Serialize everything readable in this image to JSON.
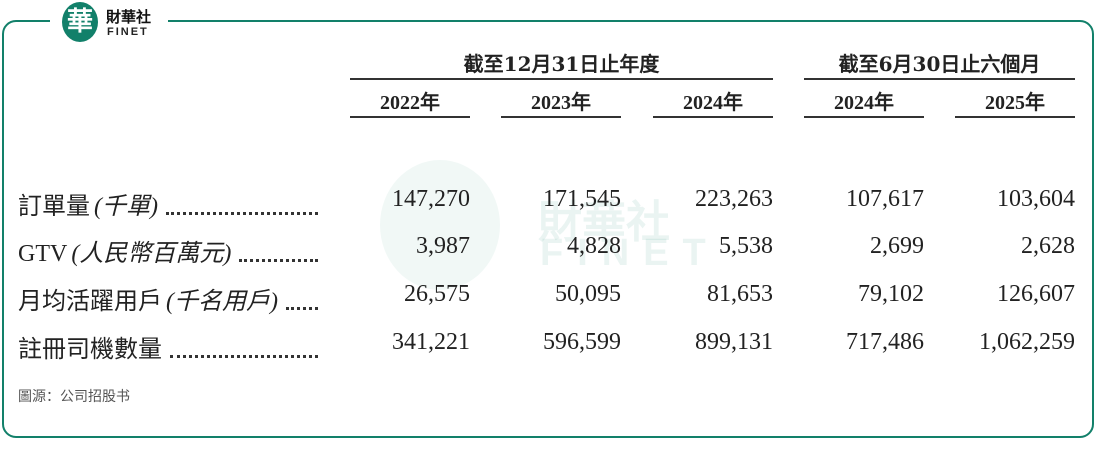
{
  "logo": {
    "mark": "華",
    "name": "財華社",
    "latin": "FINET"
  },
  "table": {
    "groups": [
      {
        "label": "截至12月31日止年度",
        "span": 3
      },
      {
        "label": "截至6月30日止六個月",
        "span": 2
      }
    ],
    "years": [
      "2022年",
      "2023年",
      "2024年",
      "2024年",
      "2025年"
    ],
    "rows": [
      {
        "label": "訂單量",
        "unit": "(千單)",
        "values": [
          "147,270",
          "171,545",
          "223,263",
          "107,617",
          "103,604"
        ]
      },
      {
        "label": "GTV",
        "unit": "(人民幣百萬元)",
        "values": [
          "3,987",
          "4,828",
          "5,538",
          "2,699",
          "2,628"
        ]
      },
      {
        "label": "月均活躍用戶",
        "unit": "(千名用戶)",
        "values": [
          "26,575",
          "50,095",
          "81,653",
          "79,102",
          "126,607"
        ]
      },
      {
        "label": "註冊司機數量",
        "values": [
          "341,221",
          "596,599",
          "899,131",
          "717,486",
          "1,062,259"
        ]
      }
    ]
  },
  "source": "圖源：公司招股书"
}
